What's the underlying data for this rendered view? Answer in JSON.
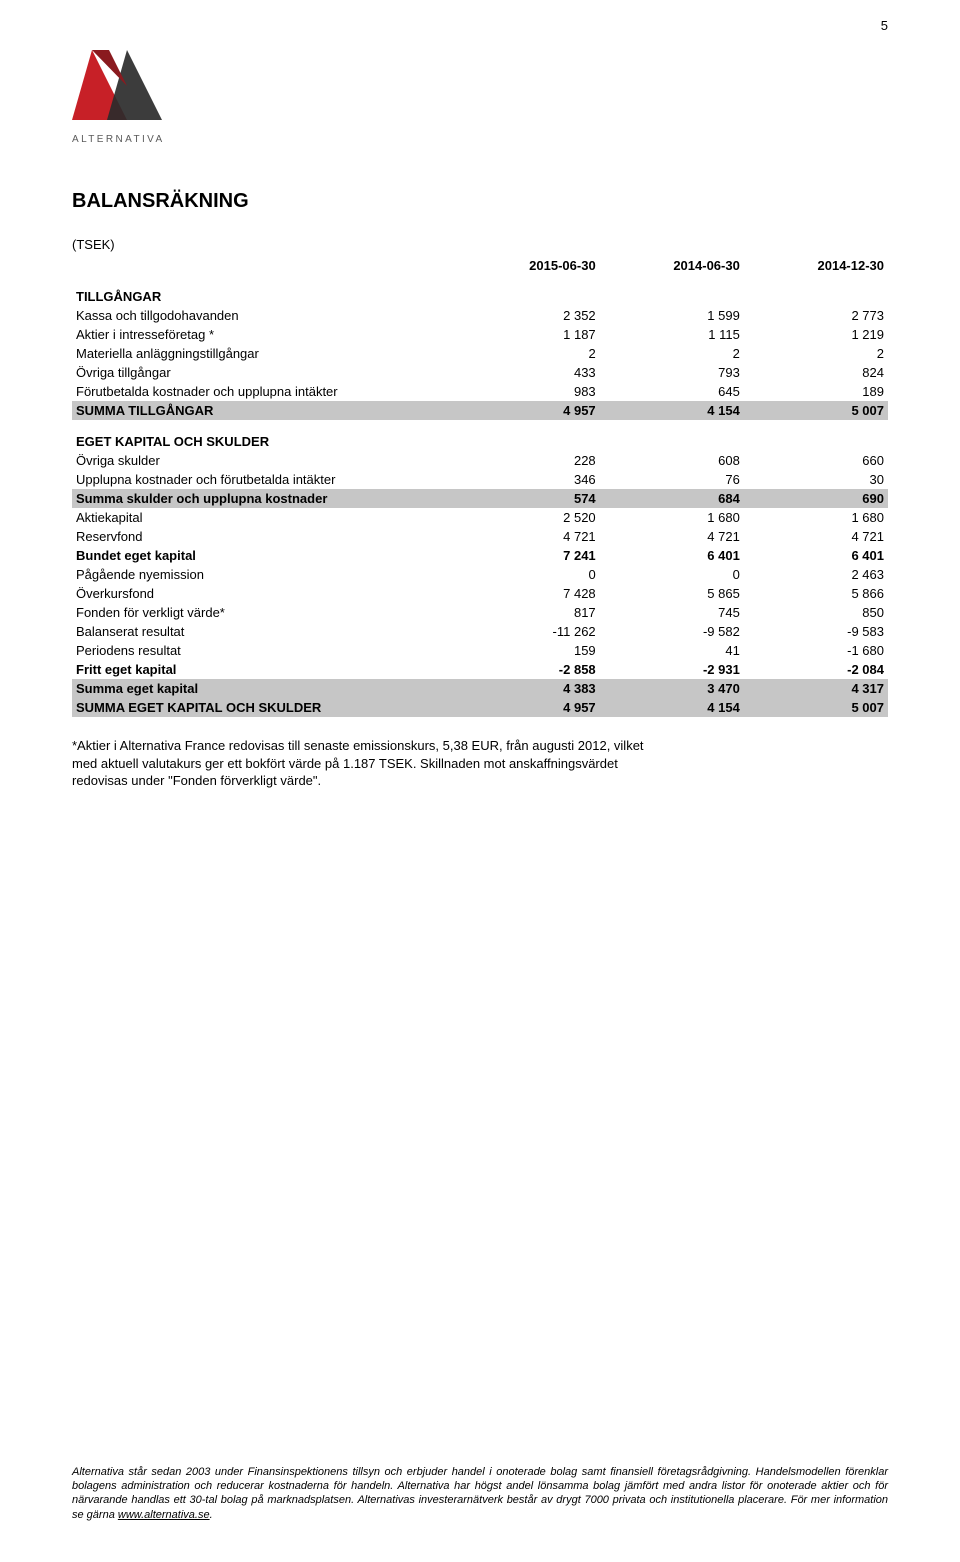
{
  "page_number": "5",
  "logo": {
    "wordmark": "ALTERNATIVA",
    "wordmark_color": "#5a5a5a",
    "mark_red": "#c72027",
    "mark_dark": "#2b2b2b"
  },
  "title": "BALANSRÄKNING",
  "subtitle": "(TSEK)",
  "column_headers": [
    "",
    "2015-06-30",
    "2014-06-30",
    "2014-12-30"
  ],
  "sections": [
    {
      "header": "TILLGÅNGAR",
      "rows": [
        {
          "label": "Kassa och tillgodohavanden",
          "vals": [
            "2 352",
            "1 599",
            "2 773"
          ]
        },
        {
          "label": "Aktier i intresseföretag *",
          "vals": [
            "1 187",
            "1 115",
            "1 219"
          ]
        },
        {
          "label": "Materiella anläggningstillgångar",
          "vals": [
            "2",
            "2",
            "2"
          ]
        },
        {
          "label": "Övriga tillgångar",
          "vals": [
            "433",
            "793",
            "824"
          ]
        },
        {
          "label": "Förutbetalda kostnader och upplupna intäkter",
          "vals": [
            "983",
            "645",
            "189"
          ]
        }
      ],
      "total": {
        "label": "SUMMA TILLGÅNGAR",
        "vals": [
          "4 957",
          "4 154",
          "5 007"
        ],
        "shaded": true
      }
    },
    {
      "header": "EGET KAPITAL OCH SKULDER",
      "rows": [
        {
          "label": "Övriga skulder",
          "vals": [
            "228",
            "608",
            "660"
          ]
        },
        {
          "label": "Upplupna kostnader och förutbetalda intäkter",
          "vals": [
            "346",
            "76",
            "30"
          ]
        }
      ],
      "total": {
        "label": "Summa skulder och upplupna kostnader",
        "vals": [
          "574",
          "684",
          "690"
        ],
        "shaded": true
      }
    },
    {
      "rows": [
        {
          "label": "Aktiekapital",
          "vals": [
            "2 520",
            "1 680",
            "1 680"
          ]
        },
        {
          "label": "Reservfond",
          "vals": [
            "4 721",
            "4 721",
            "4 721"
          ]
        },
        {
          "label": "Bundet eget kapital",
          "vals": [
            "7 241",
            "6 401",
            "6 401"
          ],
          "bold": true
        },
        {
          "label": "Pågående nyemission",
          "vals": [
            "0",
            "0",
            "2 463"
          ]
        },
        {
          "label": "Överkursfond",
          "vals": [
            "7 428",
            "5 865",
            "5 866"
          ]
        },
        {
          "label": "Fonden för verkligt värde*",
          "vals": [
            "817",
            "745",
            "850"
          ]
        },
        {
          "label": "Balanserat resultat",
          "vals": [
            "-11 262",
            "-9 582",
            "-9 583"
          ]
        },
        {
          "label": "Periodens resultat",
          "vals": [
            "159",
            "41",
            "-1 680"
          ]
        },
        {
          "label": "Fritt eget kapital",
          "vals": [
            "-2 858",
            "-2 931",
            "-2 084"
          ],
          "bold": true
        }
      ],
      "totals": [
        {
          "label": "Summa eget kapital",
          "vals": [
            "4 383",
            "3 470",
            "4 317"
          ],
          "shaded": true
        },
        {
          "label": "SUMMA EGET KAPITAL OCH SKULDER",
          "vals": [
            "4 957",
            "4 154",
            "5 007"
          ],
          "shaded": true
        }
      ]
    }
  ],
  "footnote_lines": [
    "*Aktier i Alternativa France redovisas till senaste emissionskurs, 5,38 EUR, från augusti 2012, vilket",
    "med aktuell valutakurs ger ett bokfört värde på 1.187 TSEK. Skillnaden mot anskaffningsvärdet",
    "redovisas under \"Fonden förverkligt värde\"."
  ],
  "footer_text": "Alternativa står sedan 2003 under Finansinspektionens tillsyn och erbjuder handel i onoterade bolag samt finansiell företagsrådgivning. Handelsmodellen förenklar bolagens administration och reducerar kostnaderna för handeln. Alternativa har högst andel lönsamma bolag jämfört med andra listor för onoterade aktier och för närvarande handlas ett 30-tal bolag på marknadsplatsen. Alternativas investerarnätverk består av drygt 7000 privata och institutionella placerare. För mer information se gärna ",
  "footer_link_text": "www.alternativa.se",
  "footer_suffix": ".",
  "styling": {
    "body_font_size_pt": 10,
    "title_font_size_pt": 15,
    "footer_font_size_pt": 8.5,
    "shaded_row_bg": "#c6c6c6",
    "background": "#ffffff",
    "text_color": "#000000"
  }
}
